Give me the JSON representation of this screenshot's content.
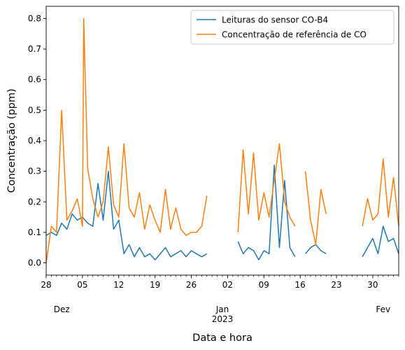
{
  "chart_data": {
    "type": "line",
    "xlabel": "Data e hora",
    "ylabel": "Concentração (ppm)",
    "ylim": [
      -0.04,
      0.84
    ],
    "xlim": [
      "2022-11-28",
      "2023-02-04"
    ],
    "y_ticks": [
      "0.0",
      "0.1",
      "0.2",
      "0.3",
      "0.4",
      "0.5",
      "0.6",
      "0.7",
      "0.8"
    ],
    "x_major_ticks": [
      {
        "date": "2022-11-28",
        "label": "28"
      },
      {
        "date": "2022-12-05",
        "label": "05"
      },
      {
        "date": "2022-12-12",
        "label": "12"
      },
      {
        "date": "2022-12-19",
        "label": "19"
      },
      {
        "date": "2022-12-26",
        "label": "26"
      },
      {
        "date": "2023-01-02",
        "label": "02"
      },
      {
        "date": "2023-01-09",
        "label": "09"
      },
      {
        "date": "2023-01-16",
        "label": "16"
      },
      {
        "date": "2023-01-23",
        "label": "23"
      },
      {
        "date": "2023-01-30",
        "label": "30"
      }
    ],
    "x_month_labels": [
      {
        "date": "2022-12-01",
        "label": "Dez"
      },
      {
        "date": "2023-01-01",
        "label": "Jan"
      },
      {
        "date": "2023-02-01",
        "label": "Fev"
      }
    ],
    "x_year_label": {
      "date": "2023-01-01",
      "label": "2023"
    },
    "legend_position": "top-right",
    "grid": false,
    "series": [
      {
        "name": "Leituras do sensor CO-B4",
        "color": "#1f77b4",
        "segments": [
          [
            [
              "2022-11-28",
              0.09
            ],
            [
              "2022-11-29",
              0.1
            ],
            [
              "2022-11-30",
              0.09
            ],
            [
              "2022-12-01",
              0.13
            ],
            [
              "2022-12-02",
              0.11
            ],
            [
              "2022-12-03",
              0.16
            ],
            [
              "2022-12-04",
              0.14
            ],
            [
              "2022-12-05",
              0.15
            ],
            [
              "2022-12-06",
              0.13
            ],
            [
              "2022-12-07",
              0.12
            ],
            [
              "2022-12-08",
              0.26
            ],
            [
              "2022-12-09",
              0.14
            ],
            [
              "2022-12-10",
              0.3
            ],
            [
              "2022-12-11",
              0.11
            ],
            [
              "2022-12-12",
              0.14
            ],
            [
              "2022-12-13",
              0.03
            ],
            [
              "2022-12-14",
              0.06
            ],
            [
              "2022-12-15",
              0.02
            ],
            [
              "2022-12-16",
              0.05
            ],
            [
              "2022-12-17",
              0.02
            ],
            [
              "2022-12-18",
              0.03
            ],
            [
              "2022-12-19",
              0.01
            ],
            [
              "2022-12-20",
              0.03
            ],
            [
              "2022-12-21",
              0.05
            ],
            [
              "2022-12-22",
              0.02
            ],
            [
              "2022-12-23",
              0.03
            ],
            [
              "2022-12-24",
              0.04
            ],
            [
              "2022-12-25",
              0.02
            ],
            [
              "2022-12-26",
              0.04
            ],
            [
              "2022-12-27",
              0.03
            ],
            [
              "2022-12-28",
              0.02
            ],
            [
              "2022-12-29",
              0.03
            ]
          ],
          [
            [
              "2023-01-04",
              0.07
            ],
            [
              "2023-01-05",
              0.03
            ],
            [
              "2023-01-06",
              0.05
            ],
            [
              "2023-01-07",
              0.04
            ],
            [
              "2023-01-08",
              0.01
            ],
            [
              "2023-01-09",
              0.04
            ],
            [
              "2023-01-10",
              0.03
            ],
            [
              "2023-01-11",
              0.32
            ],
            [
              "2023-01-12",
              0.05
            ],
            [
              "2023-01-13",
              0.27
            ],
            [
              "2023-01-14",
              0.05
            ],
            [
              "2023-01-15",
              0.02
            ]
          ],
          [
            [
              "2023-01-17",
              0.03
            ],
            [
              "2023-01-18",
              0.05
            ],
            [
              "2023-01-19",
              0.06
            ],
            [
              "2023-01-20",
              0.04
            ],
            [
              "2023-01-21",
              0.03
            ]
          ],
          [
            [
              "2023-01-28",
              0.02
            ],
            [
              "2023-01-29",
              0.05
            ],
            [
              "2023-01-30",
              0.08
            ],
            [
              "2023-01-31",
              0.03
            ],
            [
              "2023-02-01",
              0.12
            ],
            [
              "2023-02-02",
              0.07
            ],
            [
              "2023-02-03",
              0.08
            ],
            [
              "2023-02-04",
              0.03
            ]
          ]
        ]
      },
      {
        "name": "Concentração de referência de CO",
        "color": "#ff7f0e",
        "segments": [
          [
            [
              "2022-11-28",
              0.0
            ],
            [
              "2022-11-29",
              0.12
            ],
            [
              "2022-11-30",
              0.1
            ],
            [
              "2022-12-01",
              0.5
            ],
            [
              "2022-12-02",
              0.14
            ],
            [
              "2022-12-03",
              0.17
            ],
            [
              "2022-12-04",
              0.21
            ],
            [
              "2022-12-05",
              0.12
            ],
            [
              "2022-12-05T06:00",
              0.8
            ],
            [
              "2022-12-06",
              0.31
            ],
            [
              "2022-12-07",
              0.21
            ],
            [
              "2022-12-08",
              0.15
            ],
            [
              "2022-12-09",
              0.2
            ],
            [
              "2022-12-10",
              0.38
            ],
            [
              "2022-12-11",
              0.19
            ],
            [
              "2022-12-12",
              0.15
            ],
            [
              "2022-12-13",
              0.39
            ],
            [
              "2022-12-14",
              0.18
            ],
            [
              "2022-12-15",
              0.15
            ],
            [
              "2022-12-16",
              0.23
            ],
            [
              "2022-12-17",
              0.11
            ],
            [
              "2022-12-18",
              0.19
            ],
            [
              "2022-12-19",
              0.14
            ],
            [
              "2022-12-20",
              0.1
            ],
            [
              "2022-12-21",
              0.24
            ],
            [
              "2022-12-22",
              0.11
            ],
            [
              "2022-12-23",
              0.18
            ],
            [
              "2022-12-24",
              0.11
            ],
            [
              "2022-12-25",
              0.09
            ],
            [
              "2022-12-26",
              0.1
            ],
            [
              "2022-12-27",
              0.1
            ],
            [
              "2022-12-28",
              0.12
            ],
            [
              "2022-12-29",
              0.22
            ]
          ],
          [
            [
              "2023-01-04",
              0.1
            ],
            [
              "2023-01-05",
              0.37
            ],
            [
              "2023-01-06",
              0.16
            ],
            [
              "2023-01-07",
              0.36
            ],
            [
              "2023-01-08",
              0.14
            ],
            [
              "2023-01-09",
              0.23
            ],
            [
              "2023-01-10",
              0.15
            ],
            [
              "2023-01-11",
              0.27
            ],
            [
              "2023-01-12",
              0.39
            ],
            [
              "2023-01-13",
              0.2
            ],
            [
              "2023-01-14",
              0.15
            ],
            [
              "2023-01-15",
              0.12
            ]
          ],
          [
            [
              "2023-01-17",
              0.3
            ],
            [
              "2023-01-18",
              0.14
            ],
            [
              "2023-01-19",
              0.06
            ],
            [
              "2023-01-20",
              0.24
            ],
            [
              "2023-01-21",
              0.16
            ]
          ],
          [
            [
              "2023-01-28",
              0.12
            ],
            [
              "2023-01-29",
              0.21
            ],
            [
              "2023-01-30",
              0.14
            ],
            [
              "2023-01-31",
              0.16
            ],
            [
              "2023-02-01",
              0.34
            ],
            [
              "2023-02-02",
              0.15
            ],
            [
              "2023-02-03",
              0.28
            ],
            [
              "2023-02-04",
              0.12
            ]
          ]
        ]
      }
    ]
  }
}
